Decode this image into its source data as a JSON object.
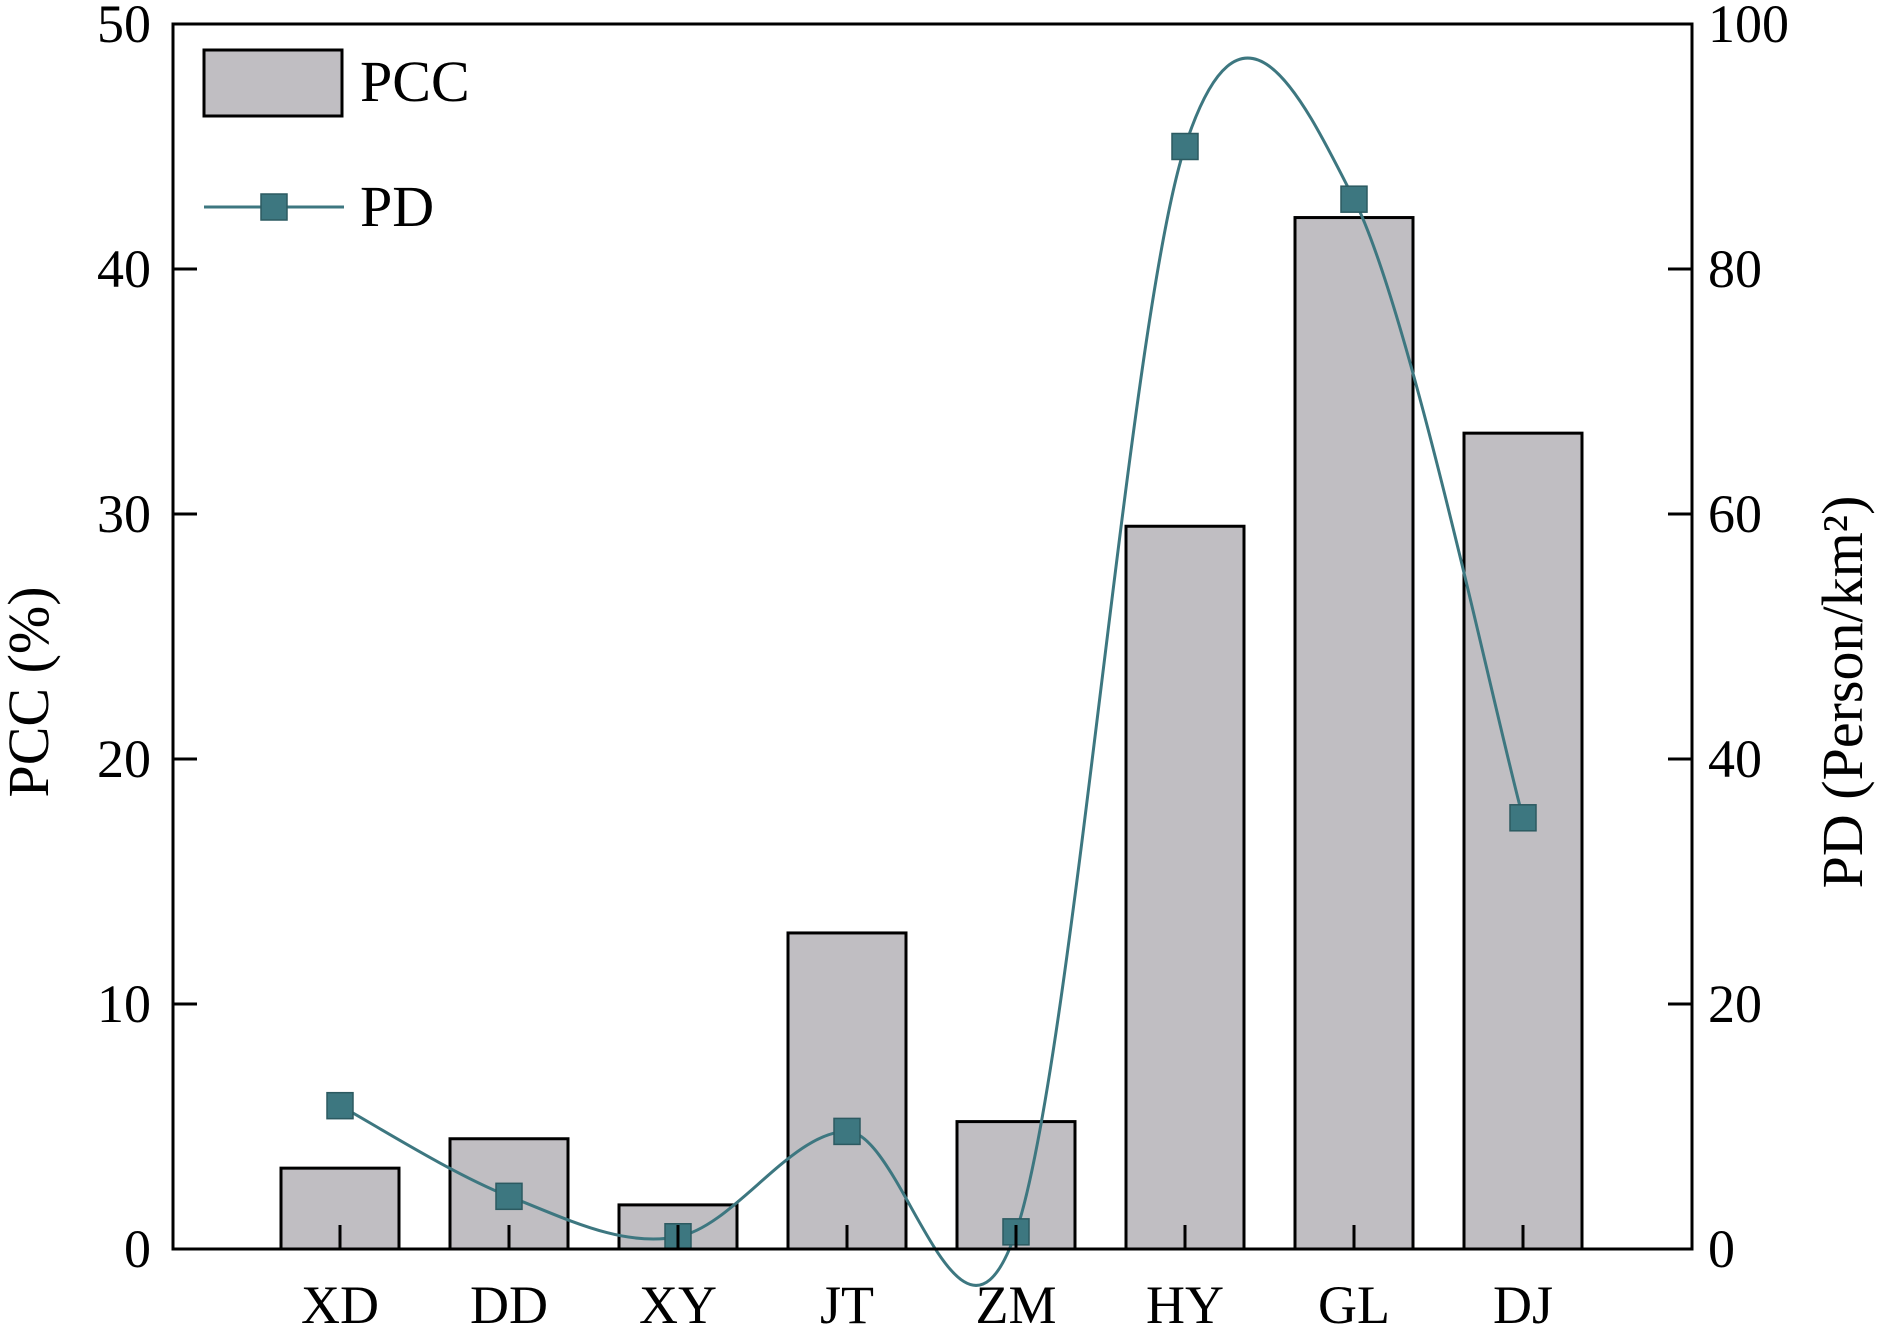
{
  "chart_data": {
    "type": "bar+line",
    "categories": [
      "XD",
      "DD",
      "XY",
      "JT",
      "ZM",
      "HY",
      "GL",
      "DJ"
    ],
    "series": [
      {
        "name": "PCC",
        "type": "bar",
        "axis": "left",
        "values": [
          3.3,
          4.5,
          1.8,
          12.9,
          5.2,
          29.5,
          42.1,
          33.3
        ],
        "color": "#c0bec2"
      },
      {
        "name": "PD",
        "type": "line",
        "axis": "right",
        "values": [
          11.7,
          4.3,
          1.0,
          9.6,
          1.4,
          90.0,
          85.7,
          35.2
        ],
        "color": "#3d7780"
      }
    ],
    "ylabel": "PCC (%)",
    "y2label": "PD (Person/km²)",
    "ylim": [
      0,
      50
    ],
    "y2lim": [
      0,
      100
    ],
    "yticks": [
      0,
      10,
      20,
      30,
      40,
      50
    ],
    "y2ticks": [
      0,
      20,
      40,
      60,
      80,
      100
    ],
    "legend_position": "top-left",
    "grid": false
  }
}
